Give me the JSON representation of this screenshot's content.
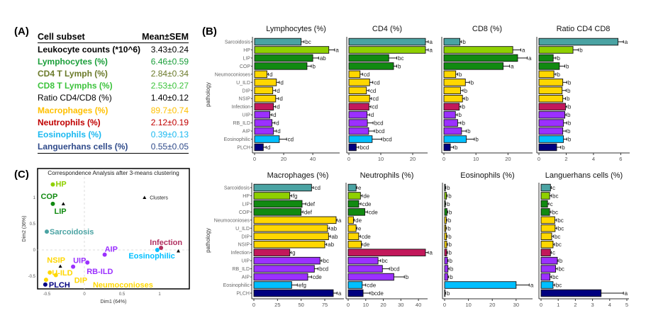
{
  "panels": {
    "a": "(A)",
    "b": "(B)",
    "c": "(C)"
  },
  "table": {
    "headers": [
      "Cell subset",
      "Mean±SEM"
    ],
    "rows": [
      {
        "label": "Leukocyte counts (*10^6)",
        "value": "3.43±0.24",
        "color": "#000000",
        "bold": true
      },
      {
        "label": "Lymphocytes (%)",
        "value": "6.46±0.59",
        "color": "#1a9e3a",
        "bold": true
      },
      {
        "label": "CD4 T Lymph (%)",
        "value": "2.84±0.34",
        "color": "#6b7a2a",
        "bold": true
      },
      {
        "label": "CD8 T Lymphs (%)",
        "value": "2.53±0.27",
        "color": "#3cc33c",
        "bold": true
      },
      {
        "label": "Ratio CD4/CD8 (%)",
        "value": "1.40±0.12",
        "color": "#000000",
        "bold": false
      },
      {
        "label": "Macrophages (%)",
        "value": "89.7±0.74",
        "color": "#ffc000",
        "bold": true
      },
      {
        "label": "Neutrophils (%)",
        "value": "2.12±0.19",
        "color": "#c00000",
        "bold": true
      },
      {
        "label": "Eosinophils (%)",
        "value": "0.39±0.13",
        "color": "#1ab8f0",
        "bold": true
      },
      {
        "label": "Languerhans cells (%)",
        "value": "0.55±0.05",
        "color": "#2f4a8a",
        "bold": true
      }
    ]
  },
  "chart_data": [
    {
      "type": "bar",
      "orientation": "horizontal",
      "title": "Lymphocytes (%)",
      "ylabel": "pathology",
      "xlim": [
        0,
        57
      ],
      "ticks": [
        0,
        20,
        40
      ],
      "categories": [
        "Sarcoidosis",
        "HP",
        "LIP",
        "COP",
        "Neumoconioses",
        "U_ILD",
        "DIP",
        "NSIP",
        "Infection",
        "UIP",
        "RB_ILD",
        "AIP",
        "Eosinophilic",
        "PLCH"
      ],
      "values": [
        32,
        51,
        40,
        36,
        8.5,
        15,
        12.5,
        14.5,
        13,
        10.5,
        12,
        13,
        17,
        6
      ],
      "errors": [
        2,
        4,
        4,
        3,
        1,
        2,
        2,
        2,
        1.5,
        1.5,
        2,
        2,
        5,
        2
      ],
      "letters": [
        "bc",
        "a",
        "ab",
        "b",
        "d",
        "d",
        "d",
        "d",
        "d",
        "d",
        "d",
        "d",
        "cd",
        "d"
      ]
    },
    {
      "type": "bar",
      "orientation": "horizontal",
      "title": "CD4 (%)",
      "xlim": [
        0,
        24
      ],
      "ticks": [
        0,
        10,
        20
      ],
      "values": [
        24,
        24,
        12.5,
        14,
        3.5,
        6.5,
        5.5,
        6.5,
        6.3,
        5.7,
        5.8,
        6.2,
        7.3,
        2.3
      ],
      "errors": [
        2.5,
        2.5,
        2.5,
        1,
        0.8,
        1,
        0.8,
        0.6,
        0.6,
        0.8,
        1.8,
        1.8,
        3,
        0.8
      ],
      "letters": [
        "a",
        "a",
        "bc",
        "b",
        "cd",
        "cd",
        "cd",
        "cd",
        "cd",
        "d",
        "bcd",
        "bcd",
        "bcd",
        "bcd"
      ]
    },
    {
      "type": "bar",
      "orientation": "horizontal",
      "title": "CD8 (%)",
      "xlim": [
        0,
        27
      ],
      "ticks": [
        0,
        10,
        20
      ],
      "values": [
        5,
        21.5,
        23,
        18.5,
        3.7,
        6.7,
        5.2,
        5.8,
        4.8,
        3.6,
        4.3,
        5.5,
        7,
        2
      ],
      "errors": [
        0.5,
        2.5,
        3,
        2,
        0.6,
        1.3,
        0.8,
        0.6,
        0.5,
        0.6,
        1,
        1.5,
        2.5,
        1
      ],
      "letters": [
        "b",
        "a",
        "a",
        "a",
        "b",
        "b",
        "b",
        "b",
        "b",
        "b",
        "b",
        "b",
        "b",
        "b"
      ]
    },
    {
      "type": "bar",
      "orientation": "horizontal",
      "title": "Ratio CD4 CD8",
      "xlim": [
        0,
        6.5
      ],
      "ticks": [
        0,
        2,
        4,
        6
      ],
      "values": [
        5.8,
        2.5,
        1.05,
        1.5,
        1.1,
        1.75,
        1.7,
        1.75,
        1.95,
        1.9,
        1.8,
        1.75,
        1.8,
        1.3
      ],
      "errors": [
        0.4,
        0.4,
        0.2,
        0.4,
        0.15,
        0.3,
        0.3,
        0.2,
        0.1,
        0.1,
        0.25,
        0.25,
        0.25,
        0.3
      ],
      "letters": [
        "a",
        "b",
        "b",
        "b",
        "b",
        "b",
        "b",
        "b",
        "b",
        "b",
        "b",
        "b",
        "b",
        "b"
      ]
    },
    {
      "type": "bar",
      "orientation": "horizontal",
      "title": "Macrophages (%)",
      "ylabel": "pathology",
      "xlim": [
        0,
        93
      ],
      "ticks": [
        0,
        25,
        50,
        75
      ],
      "values": [
        61,
        38,
        51,
        50,
        87,
        78,
        79,
        75,
        38,
        70,
        64,
        57,
        40,
        84
      ],
      "errors": [
        2,
        2,
        4,
        2,
        1,
        2,
        2,
        2,
        1.5,
        2,
        4,
        4,
        6,
        4
      ],
      "letters": [
        "cd",
        "fg",
        "def",
        "def",
        "a",
        "ab",
        "ab",
        "ab",
        "g",
        "bc",
        "bcd",
        "cde",
        "efg",
        "a"
      ]
    },
    {
      "type": "bar",
      "orientation": "horizontal",
      "title": "Neutrophils (%)",
      "xlim": [
        0,
        44
      ],
      "ticks": [
        0,
        10,
        20,
        30,
        40
      ],
      "values": [
        4.5,
        7,
        6,
        9.5,
        3,
        4.5,
        6,
        7.5,
        46,
        17,
        19.5,
        26,
        8,
        8.5
      ],
      "errors": [
        0.5,
        1,
        1.3,
        1.5,
        0.5,
        0.5,
        1,
        0.5,
        2,
        1.5,
        4,
        6,
        2,
        4
      ],
      "letters": [
        "e",
        "de",
        "cde",
        "cde",
        "de",
        "e",
        "cde",
        "de",
        "a",
        "bc",
        "bcd",
        "b",
        "cde",
        "bcde"
      ]
    },
    {
      "type": "bar",
      "orientation": "horizontal",
      "title": "Eosinophils (%)",
      "xlim": [
        0,
        36
      ],
      "ticks": [
        0,
        10,
        20,
        30
      ],
      "values": [
        0.3,
        0.8,
        0.3,
        1,
        0.7,
        0.5,
        0.8,
        0.9,
        0.9,
        1.2,
        1.4,
        1.3,
        30,
        0.2
      ],
      "errors": [
        0.2,
        0.3,
        0.2,
        0.3,
        0.3,
        0.3,
        0.3,
        0.3,
        0.3,
        0.3,
        0.5,
        0.4,
        5.5,
        0.2
      ],
      "letters": [
        "b",
        "b",
        "b",
        "b",
        "b",
        "b",
        "b",
        "b",
        "b",
        "b",
        "b",
        "b",
        "a",
        "b"
      ]
    },
    {
      "type": "bar",
      "orientation": "horizontal",
      "title": "Languerhans cells (%)",
      "xlim": [
        0,
        5
      ],
      "ticks": [
        0,
        1,
        2,
        3,
        4,
        5
      ],
      "values": [
        0.55,
        0.5,
        0.38,
        0.5,
        0.8,
        0.82,
        0.62,
        0.7,
        0.55,
        0.95,
        0.85,
        0.52,
        0.7,
        3.5
      ],
      "errors": [
        0.05,
        0.1,
        0.08,
        0.08,
        0.1,
        0.1,
        0.1,
        0.08,
        0.05,
        0.05,
        0.1,
        0.08,
        0.1,
        1.3
      ],
      "letters": [
        "c",
        "bc",
        "c",
        "bc",
        "bc",
        "bc",
        "bc",
        "bc",
        "c",
        "b",
        "bc",
        "bc",
        "bc",
        "a"
      ]
    },
    {
      "type": "scatter",
      "title": "Correspondence Analysis after 3-means clustering",
      "xlabel": "Dim1 (64%)",
      "ylabel": "Dim2 (36%)",
      "xticks": [
        -0.5,
        0.0,
        0.5,
        1.0
      ],
      "yticks": [
        -0.5,
        0.0,
        0.5,
        1.0
      ],
      "legend": "Clusters",
      "points": [
        {
          "name": "HP",
          "x": -0.42,
          "y": 1.25,
          "color": "#8fd000"
        },
        {
          "name": "COP",
          "x": -0.42,
          "y": 0.88,
          "color": "#118a11"
        },
        {
          "name": "LIP",
          "x": -0.42,
          "y": 0.88,
          "color": "#118a11"
        },
        {
          "name": "Sarcoidosis",
          "x": -0.5,
          "y": 0.35,
          "color": "#4aa3a3"
        },
        {
          "name": "Infection",
          "x": 1.02,
          "y": 0.04,
          "color": "#b03060"
        },
        {
          "name": "Eosinophilic",
          "x": 0.97,
          "y": 0.0,
          "color": "#00bfff"
        },
        {
          "name": "AIP",
          "x": 0.27,
          "y": -0.09,
          "color": "#9b30ff"
        },
        {
          "name": "UIP",
          "x": -0.15,
          "y": -0.32,
          "color": "#9b30ff"
        },
        {
          "name": "RB-ILD",
          "x": 0.04,
          "y": -0.24,
          "color": "#9b30ff"
        },
        {
          "name": "NSIP",
          "x": -0.45,
          "y": -0.31,
          "color": "#ffd700"
        },
        {
          "name": "U-ILD",
          "x": -0.46,
          "y": -0.43,
          "color": "#ffd700"
        },
        {
          "name": "DIP",
          "x": -0.38,
          "y": -0.48,
          "color": "#ffd700"
        },
        {
          "name": "Neumoconioses",
          "x": -0.51,
          "y": -0.57,
          "color": "#ffd700"
        },
        {
          "name": "PLCH",
          "x": -0.52,
          "y": -0.66,
          "color": "#000080"
        }
      ],
      "clusters": [
        {
          "x": -0.28,
          "y": 0.88
        },
        {
          "x": 1.25,
          "y": -0.02
        },
        {
          "x": -0.32,
          "y": -0.31
        }
      ]
    }
  ],
  "bar_colors": [
    "#4aa3a3",
    "#8fd000",
    "#118a11",
    "#118a11",
    "#ffd700",
    "#ffd700",
    "#ffd700",
    "#ffd700",
    "#c2185b",
    "#9b30ff",
    "#9b30ff",
    "#9b30ff",
    "#00bfff",
    "#00007f"
  ]
}
